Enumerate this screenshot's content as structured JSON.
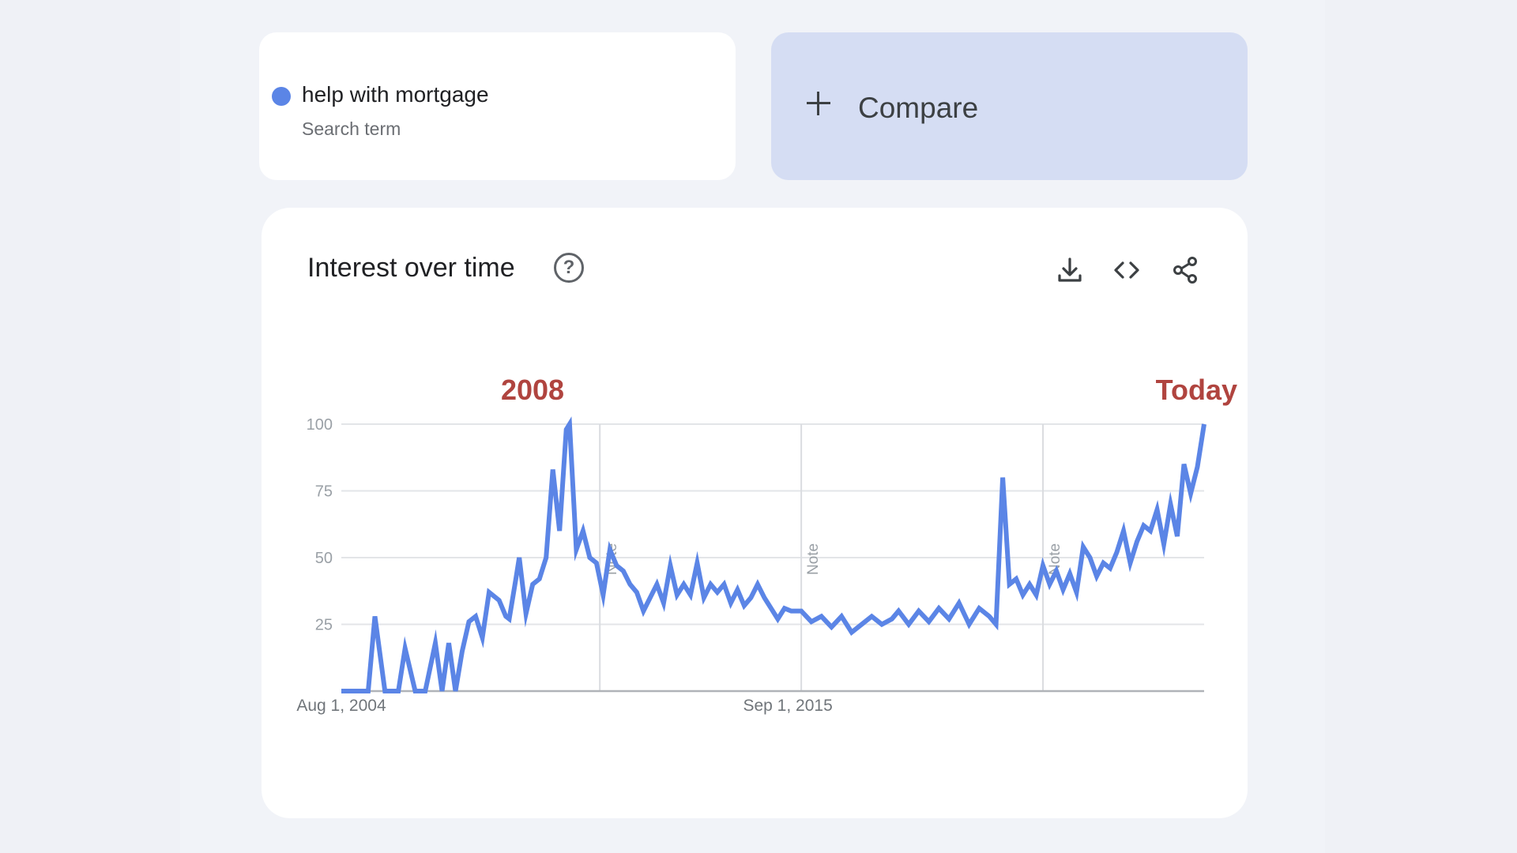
{
  "search_term": {
    "label": "help with mortgage",
    "type": "Search term",
    "color": "#5b85e6"
  },
  "compare": {
    "label": "Compare"
  },
  "chart_card": {
    "title": "Interest over time",
    "help_icon_glyph": "?",
    "tools": [
      "download-icon",
      "embed-code-icon",
      "share-icon"
    ]
  },
  "chart_data": {
    "type": "line",
    "x_start": "Aug 1, 2004",
    "x_labels": [
      "Aug 1, 2004",
      "Sep 1, 2015"
    ],
    "y_ticks": [
      25,
      50,
      75,
      100
    ],
    "ylim": [
      0,
      100
    ],
    "grid": true,
    "notes": [
      {
        "date": "Jan 2011",
        "label": "Note"
      },
      {
        "date": "Jan 2016",
        "label": "Note"
      },
      {
        "date": "Jan 2022",
        "label": "Note"
      }
    ],
    "annotations": [
      {
        "text": "2008",
        "date": "Oct 2008"
      },
      {
        "text": "Today",
        "date": "Jun 2025"
      }
    ],
    "series": [
      {
        "name": "help with mortgage",
        "color": "#5b85e6",
        "points": [
          [
            "2004-08",
            0
          ],
          [
            "2005-04",
            0
          ],
          [
            "2005-06",
            28
          ],
          [
            "2005-09",
            0
          ],
          [
            "2006-01",
            0
          ],
          [
            "2006-03",
            16
          ],
          [
            "2006-06",
            0
          ],
          [
            "2006-09",
            0
          ],
          [
            "2006-12",
            18
          ],
          [
            "2007-02",
            0
          ],
          [
            "2007-04",
            18
          ],
          [
            "2007-06",
            0
          ],
          [
            "2007-08",
            15
          ],
          [
            "2007-10",
            26
          ],
          [
            "2007-12",
            28
          ],
          [
            "2008-02",
            20
          ],
          [
            "2008-04",
            37
          ],
          [
            "2008-06",
            35
          ],
          [
            "2008-07",
            34
          ],
          [
            "2008-09",
            28
          ],
          [
            "2008-10",
            27
          ],
          [
            "2008-12",
            42
          ],
          [
            "2009-01",
            50
          ],
          [
            "2009-03",
            29
          ],
          [
            "2009-05",
            40
          ],
          [
            "2009-07",
            42
          ],
          [
            "2009-09",
            50
          ],
          [
            "2009-11",
            83
          ],
          [
            "2010-01",
            60
          ],
          [
            "2010-03",
            98
          ],
          [
            "2010-04",
            100
          ],
          [
            "2010-06",
            53
          ],
          [
            "2010-08",
            60
          ],
          [
            "2010-10",
            50
          ],
          [
            "2010-12",
            48
          ],
          [
            "2011-02",
            36
          ],
          [
            "2011-04",
            53
          ],
          [
            "2011-06",
            47
          ],
          [
            "2011-08",
            45
          ],
          [
            "2011-10",
            40
          ],
          [
            "2011-12",
            37
          ],
          [
            "2012-02",
            30
          ],
          [
            "2012-04",
            35
          ],
          [
            "2012-06",
            40
          ],
          [
            "2012-08",
            33
          ],
          [
            "2012-10",
            47
          ],
          [
            "2012-12",
            36
          ],
          [
            "2013-02",
            40
          ],
          [
            "2013-04",
            36
          ],
          [
            "2013-06",
            48
          ],
          [
            "2013-08",
            35
          ],
          [
            "2013-10",
            40
          ],
          [
            "2013-12",
            37
          ],
          [
            "2014-02",
            40
          ],
          [
            "2014-04",
            33
          ],
          [
            "2014-06",
            38
          ],
          [
            "2014-08",
            32
          ],
          [
            "2014-10",
            35
          ],
          [
            "2014-12",
            40
          ],
          [
            "2015-02",
            35
          ],
          [
            "2015-04",
            31
          ],
          [
            "2015-06",
            27
          ],
          [
            "2015-08",
            31
          ],
          [
            "2015-10",
            30
          ],
          [
            "2016-01",
            30
          ],
          [
            "2016-04",
            26
          ],
          [
            "2016-07",
            28
          ],
          [
            "2016-10",
            24
          ],
          [
            "2017-01",
            28
          ],
          [
            "2017-04",
            22
          ],
          [
            "2017-07",
            25
          ],
          [
            "2017-10",
            28
          ],
          [
            "2018-01",
            25
          ],
          [
            "2018-04",
            27
          ],
          [
            "2018-06",
            30
          ],
          [
            "2018-09",
            25
          ],
          [
            "2018-12",
            30
          ],
          [
            "2019-03",
            26
          ],
          [
            "2019-06",
            31
          ],
          [
            "2019-09",
            27
          ],
          [
            "2019-12",
            33
          ],
          [
            "2020-03",
            25
          ],
          [
            "2020-06",
            31
          ],
          [
            "2020-09",
            28
          ],
          [
            "2020-11",
            25
          ],
          [
            "2021-01",
            80
          ],
          [
            "2021-03",
            40
          ],
          [
            "2021-05",
            42
          ],
          [
            "2021-07",
            36
          ],
          [
            "2021-09",
            40
          ],
          [
            "2021-11",
            36
          ],
          [
            "2022-01",
            47
          ],
          [
            "2022-03",
            40
          ],
          [
            "2022-05",
            45
          ],
          [
            "2022-07",
            38
          ],
          [
            "2022-09",
            44
          ],
          [
            "2022-11",
            37
          ],
          [
            "2023-01",
            54
          ],
          [
            "2023-03",
            50
          ],
          [
            "2023-05",
            43
          ],
          [
            "2023-07",
            48
          ],
          [
            "2023-09",
            46
          ],
          [
            "2023-11",
            52
          ],
          [
            "2024-01",
            60
          ],
          [
            "2024-03",
            48
          ],
          [
            "2024-05",
            56
          ],
          [
            "2024-07",
            62
          ],
          [
            "2024-09",
            60
          ],
          [
            "2024-11",
            68
          ],
          [
            "2025-01",
            55
          ],
          [
            "2025-03",
            70
          ],
          [
            "2025-05",
            58
          ],
          [
            "2025-07",
            85
          ],
          [
            "2025-09",
            74
          ],
          [
            "2025-11",
            84
          ],
          [
            "2026-01",
            100
          ]
        ]
      }
    ]
  }
}
